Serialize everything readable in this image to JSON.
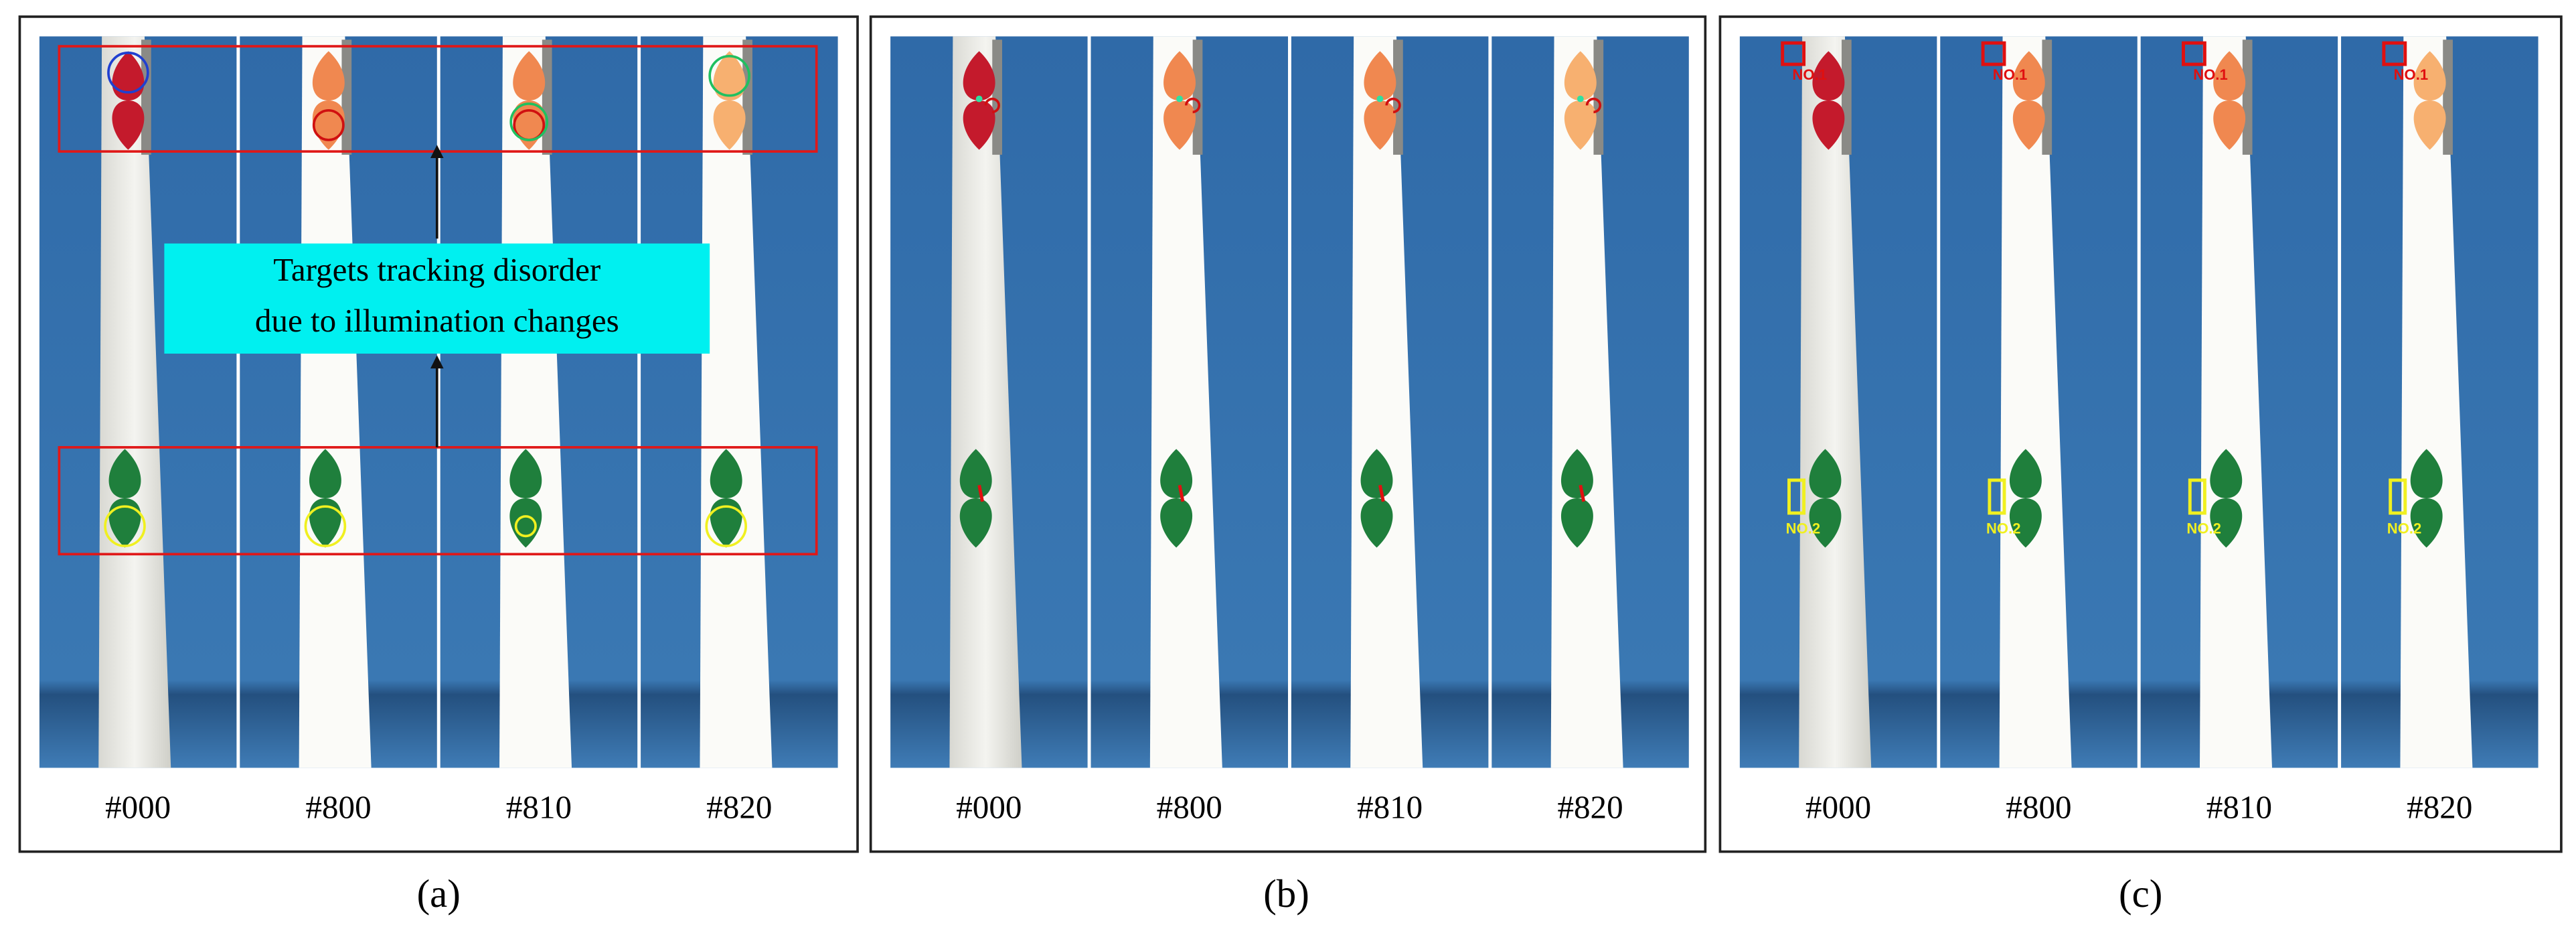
{
  "panels": [
    {
      "label": "(a)",
      "frames": [
        "#000",
        "#800",
        "#810",
        "#820"
      ],
      "annotation": [
        "Targets tracking disorder",
        "due to illumination changes"
      ]
    },
    {
      "label": "(b)",
      "frames": [
        "#000",
        "#800",
        "#810",
        "#820"
      ]
    },
    {
      "label": "(c)",
      "frames": [
        "#000",
        "#800",
        "#810",
        "#820"
      ],
      "target_labels": [
        "NO.1",
        "NO.2"
      ]
    }
  ]
}
